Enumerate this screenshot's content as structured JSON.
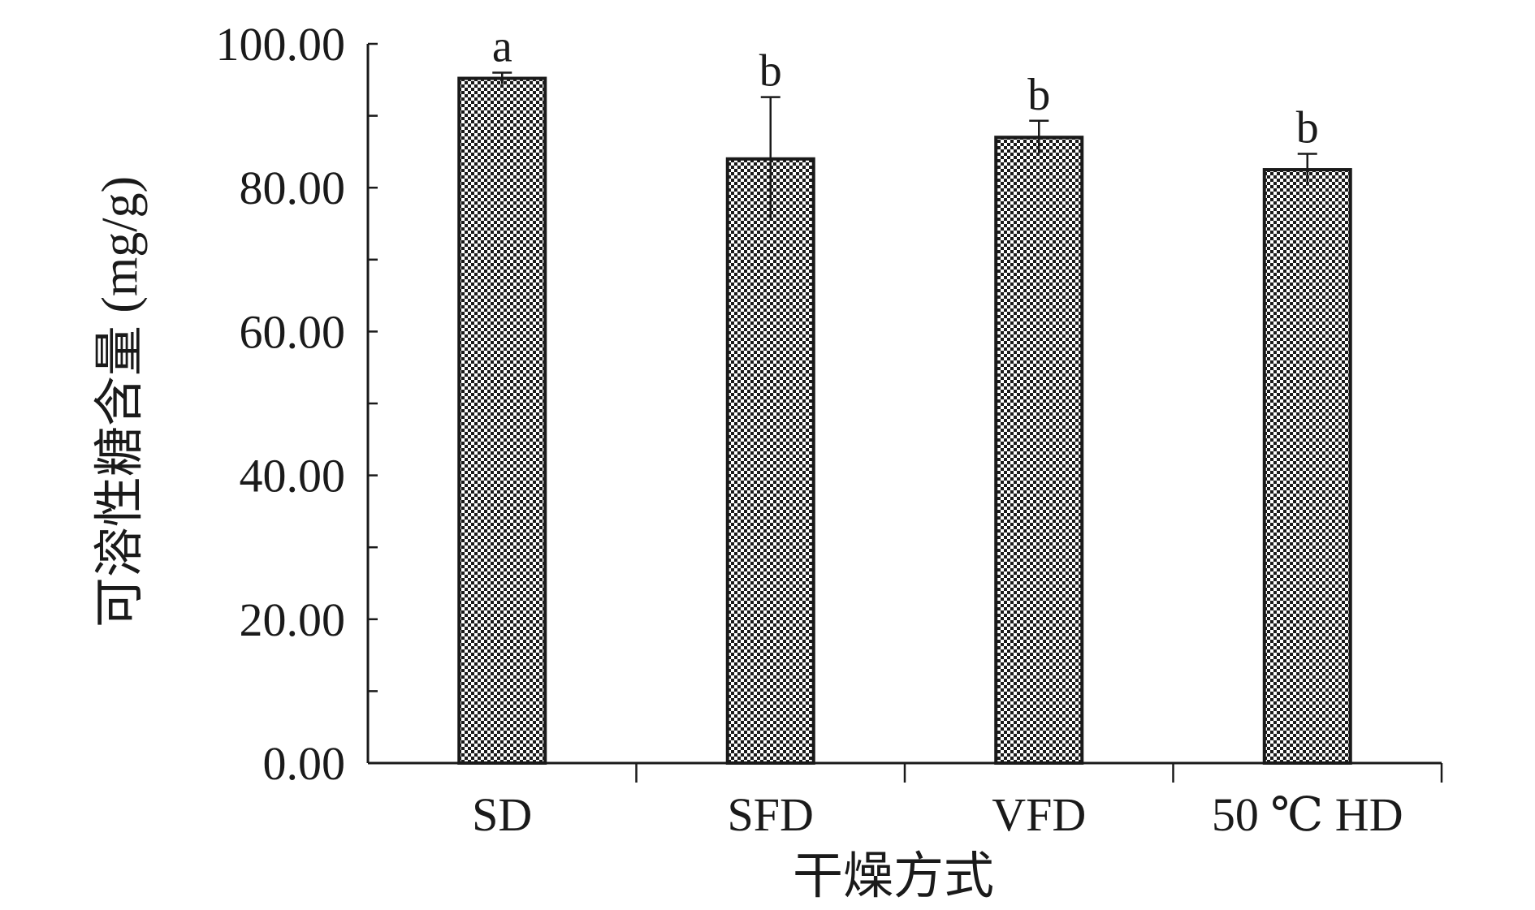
{
  "chart_data": {
    "type": "bar",
    "xlabel": "干燥方式",
    "ylabel": "可溶性糖含量 (mg/g)",
    "categories": [
      "SD",
      "SFD",
      "VFD",
      "50 ℃ HD"
    ],
    "values": [
      95.2,
      84.0,
      87.0,
      82.5
    ],
    "error": [
      0.8,
      8.6,
      2.3,
      2.2
    ],
    "significance": [
      "a",
      "b",
      "b",
      "b"
    ],
    "ylim": [
      0,
      100
    ],
    "yticks": [
      0,
      20,
      40,
      60,
      80,
      100
    ],
    "ytick_labels": [
      "0.00",
      "20.00",
      "40.00",
      "60.00",
      "80.00",
      "100.00"
    ],
    "grid": false,
    "legend": "none",
    "bar_pattern": "checkered",
    "colors": {
      "bar_dark": "#1a1a1a",
      "bar_light": "#ffffff",
      "axis": "#1a1a1a"
    }
  }
}
